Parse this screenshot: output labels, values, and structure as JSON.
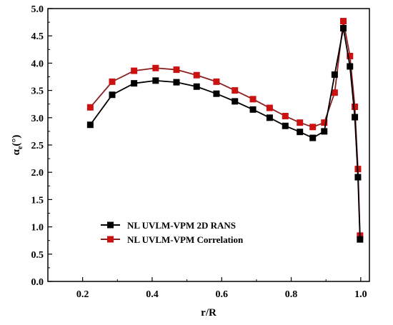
{
  "chart_data": {
    "type": "line",
    "xlabel": "r/R",
    "ylabel": "αe(°)",
    "ylabel_main": "α",
    "ylabel_sub": "e",
    "ylabel_unit": "(°)",
    "xlim": [
      0.1,
      1.025
    ],
    "ylim": [
      0.0,
      5.0
    ],
    "xticks": [
      "0.2",
      "0.4",
      "0.6",
      "0.8",
      "1.0"
    ],
    "xtick_values": [
      0.2,
      0.4,
      0.6,
      0.8,
      1.0
    ],
    "yticks": [
      "0.0",
      "0.5",
      "1.0",
      "1.5",
      "2.0",
      "2.5",
      "3.0",
      "3.5",
      "4.0",
      "4.5",
      "5.0"
    ],
    "ytick_values": [
      0.0,
      0.5,
      1.0,
      1.5,
      2.0,
      2.5,
      3.0,
      3.5,
      4.0,
      4.5,
      5.0
    ],
    "grid": false,
    "legend_position": "lower-left",
    "series": [
      {
        "name": "NL UVLM-VPM 2D RANS",
        "color": "#000000",
        "marker": "square",
        "x": [
          0.222,
          0.285,
          0.348,
          0.41,
          0.47,
          0.528,
          0.585,
          0.638,
          0.69,
          0.738,
          0.783,
          0.825,
          0.862,
          0.895,
          0.925,
          0.95,
          0.969,
          0.983,
          0.992,
          0.998
        ],
        "y": [
          2.87,
          3.42,
          3.63,
          3.68,
          3.65,
          3.57,
          3.44,
          3.3,
          3.15,
          3.0,
          2.85,
          2.74,
          2.63,
          2.75,
          3.79,
          4.64,
          3.94,
          3.01,
          1.91,
          0.77
        ]
      },
      {
        "name": "NL UVLM-VPM Correlation",
        "color": "#cc1111",
        "line_color": "#8b1e1e",
        "marker": "square",
        "x": [
          0.222,
          0.285,
          0.348,
          0.41,
          0.47,
          0.528,
          0.585,
          0.638,
          0.69,
          0.738,
          0.783,
          0.825,
          0.862,
          0.895,
          0.925,
          0.95,
          0.969,
          0.983,
          0.992,
          0.998
        ],
        "y": [
          3.19,
          3.66,
          3.86,
          3.91,
          3.88,
          3.78,
          3.66,
          3.5,
          3.34,
          3.18,
          3.03,
          2.91,
          2.83,
          2.91,
          3.46,
          4.77,
          4.13,
          3.2,
          2.06,
          0.84
        ]
      }
    ]
  }
}
